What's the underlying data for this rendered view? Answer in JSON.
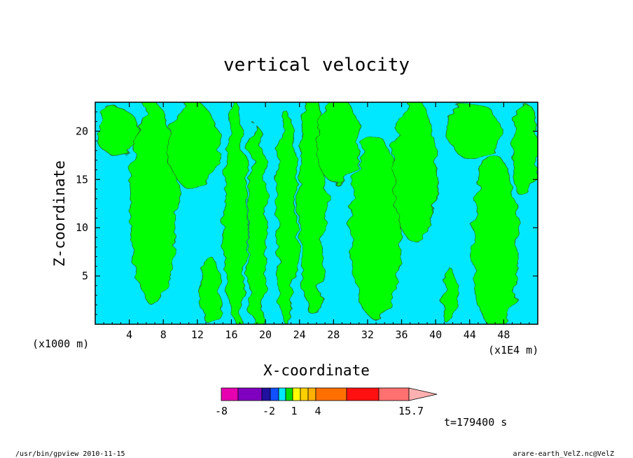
{
  "chart_data": {
    "type": "heatmap",
    "title": "vertical velocity",
    "xlabel": "X-coordinate",
    "ylabel": "Z-coordinate",
    "x_unit_left": "(x1000 m)",
    "x_unit_right": "(x1E4 m)",
    "xlim": [
      0,
      52
    ],
    "ylim": [
      0,
      23
    ],
    "x_ticks": [
      "4",
      "8",
      "12",
      "16",
      "20",
      "24",
      "28",
      "32",
      "36",
      "40",
      "44",
      "48"
    ],
    "x_tick_values": [
      4,
      8,
      12,
      16,
      20,
      24,
      28,
      32,
      36,
      40,
      44,
      48
    ],
    "y_ticks": [
      "5",
      "10",
      "15",
      "20"
    ],
    "y_tick_values": [
      5,
      10,
      15,
      20
    ],
    "background_color": "#00e8ff",
    "contour_color": "#00ff00",
    "green_regions": [
      {
        "x": 6.8,
        "z": 12.5,
        "w": 2.7,
        "h": 10.5
      },
      {
        "x": 2.5,
        "z": 20.0,
        "w": 2.5,
        "h": 2.5
      },
      {
        "x": 11.5,
        "z": 18.5,
        "w": 3.0,
        "h": 4.5
      },
      {
        "x": 13.5,
        "z": 3.5,
        "w": 1.2,
        "h": 3.5
      },
      {
        "x": 16.5,
        "z": 11.5,
        "w": 1.3,
        "h": 11.5
      },
      {
        "x": 19.0,
        "z": 9.5,
        "w": 1.1,
        "h": 11.0
      },
      {
        "x": 22.5,
        "z": 11.0,
        "w": 1.2,
        "h": 11.0
      },
      {
        "x": 25.5,
        "z": 12.5,
        "w": 1.6,
        "h": 11.5
      },
      {
        "x": 28.5,
        "z": 19.0,
        "w": 2.5,
        "h": 4.5
      },
      {
        "x": 33.0,
        "z": 10.0,
        "w": 3.0,
        "h": 9.5
      },
      {
        "x": 37.5,
        "z": 16.0,
        "w": 2.5,
        "h": 7.5
      },
      {
        "x": 47.0,
        "z": 8.5,
        "w": 2.6,
        "h": 9.0
      },
      {
        "x": 44.5,
        "z": 20.0,
        "w": 3.0,
        "h": 3.0
      },
      {
        "x": 50.5,
        "z": 18.0,
        "w": 1.5,
        "h": 5.0
      },
      {
        "x": 41.5,
        "z": 3.0,
        "w": 0.8,
        "h": 3.0
      }
    ],
    "colorbar": {
      "labels": [
        "-8",
        "-2",
        "1",
        "4",
        "15.7"
      ],
      "label_values": [
        -8,
        -2,
        1,
        4,
        15.7
      ],
      "colors": [
        "#e600b0",
        "#8000c0",
        "#2010a0",
        "#1050ff",
        "#00e8ff",
        "#00dd00",
        "#ffff00",
        "#ffd000",
        "#ffb000",
        "#ff7000",
        "#ff1010",
        "#ff7070",
        "#ffb0b0"
      ]
    },
    "time_label": "t=179400 s"
  },
  "footer": {
    "left": "/usr/bin/gpview   2010-11-15",
    "right": "arare-earth_VelZ.nc@VelZ"
  }
}
